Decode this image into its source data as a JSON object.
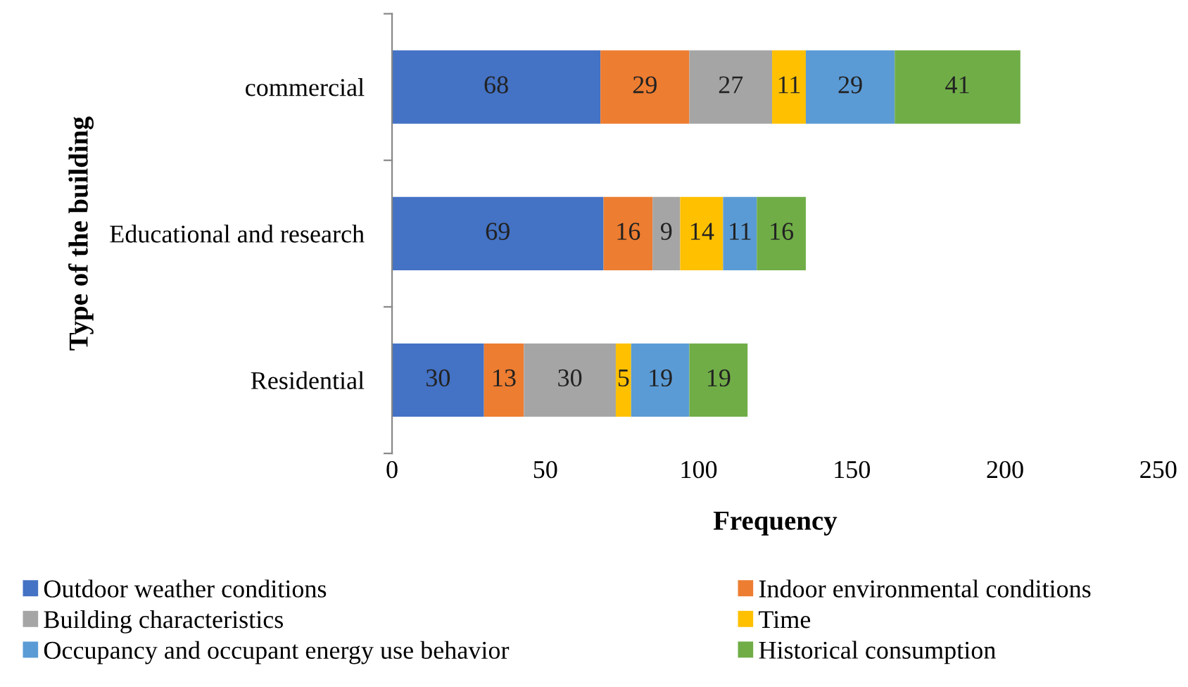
{
  "chart_data": {
    "type": "bar",
    "orientation": "horizontal",
    "stacked": true,
    "data_labels": true,
    "xlabel": "Frequency",
    "ylabel": "Type of the building",
    "categories": [
      "commercial",
      "Educational and research",
      "Residential"
    ],
    "series": [
      {
        "name": "Outdoor weather conditions",
        "color": "#4472c4",
        "values": [
          68,
          69,
          30
        ]
      },
      {
        "name": "Indoor environmental conditions",
        "color": "#ed7d31",
        "values": [
          29,
          16,
          13
        ]
      },
      {
        "name": "Building characteristics",
        "color": "#a5a5a5",
        "values": [
          27,
          9,
          30
        ]
      },
      {
        "name": "Time",
        "color": "#ffc000",
        "values": [
          11,
          14,
          5
        ]
      },
      {
        "name": "Occupancy and occupant energy use behavior",
        "color": "#5b9bd5",
        "values": [
          29,
          11,
          19
        ]
      },
      {
        "name": "Historical consumption",
        "color": "#70ad47",
        "values": [
          41,
          16,
          19
        ]
      }
    ],
    "xlim": [
      0,
      250
    ],
    "xticks": [
      0,
      50,
      100,
      150,
      200,
      250
    ],
    "grid": false,
    "legend": "bottom"
  }
}
